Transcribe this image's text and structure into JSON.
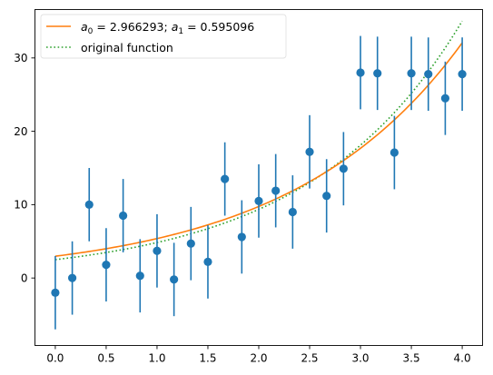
{
  "chart_data": {
    "type": "scatter",
    "title": "",
    "xlabel": "",
    "ylabel": "",
    "xlim": [
      -0.2,
      4.2
    ],
    "ylim": [
      -9.2,
      36.6
    ],
    "grid": false,
    "legend_position": "top-left",
    "x_ticks": [
      0.0,
      0.5,
      1.0,
      1.5,
      2.0,
      2.5,
      3.0,
      3.5,
      4.0
    ],
    "x_tick_labels": [
      "0.0",
      "0.5",
      "1.0",
      "1.5",
      "2.0",
      "2.5",
      "3.0",
      "3.5",
      "4.0"
    ],
    "y_ticks": [
      0,
      10,
      20,
      30
    ],
    "y_tick_labels": [
      "0",
      "10",
      "20",
      "30"
    ],
    "series": [
      {
        "kind": "errorbar",
        "color": "#1f77b4",
        "marker": "circle",
        "yerr": 5,
        "x": [
          0.0,
          0.1667,
          0.3333,
          0.5,
          0.6667,
          0.8333,
          1.0,
          1.1667,
          1.3333,
          1.5,
          1.6667,
          1.8333,
          2.0,
          2.1667,
          2.3333,
          2.5,
          2.6667,
          2.8333,
          3.0,
          3.1667,
          3.3333,
          3.5,
          3.6667,
          3.8333,
          4.0
        ],
        "y": [
          -2.0,
          0.0,
          10.0,
          1.8,
          8.5,
          0.3,
          3.7,
          -0.2,
          4.7,
          2.2,
          13.5,
          5.6,
          10.5,
          11.9,
          9.0,
          17.2,
          11.2,
          14.9,
          28.0,
          27.9,
          17.1,
          27.9,
          27.8,
          24.5,
          27.8
        ]
      },
      {
        "name_parts": {
          "a0_symbol": "a",
          "a0_sub": "0",
          "a0_value": "= 2.966293; ",
          "a1_symbol": "a",
          "a1_sub": "1",
          "a1_value": "= 0.595096"
        },
        "kind": "fit",
        "color": "#ff7f0e",
        "line_style": "solid",
        "a0": 2.966293,
        "a1": 0.595096
      },
      {
        "name": "original function",
        "kind": "line",
        "color": "#2ca02c",
        "line_style": "dotted",
        "a0": 2.5,
        "a1": 0.66
      }
    ]
  }
}
